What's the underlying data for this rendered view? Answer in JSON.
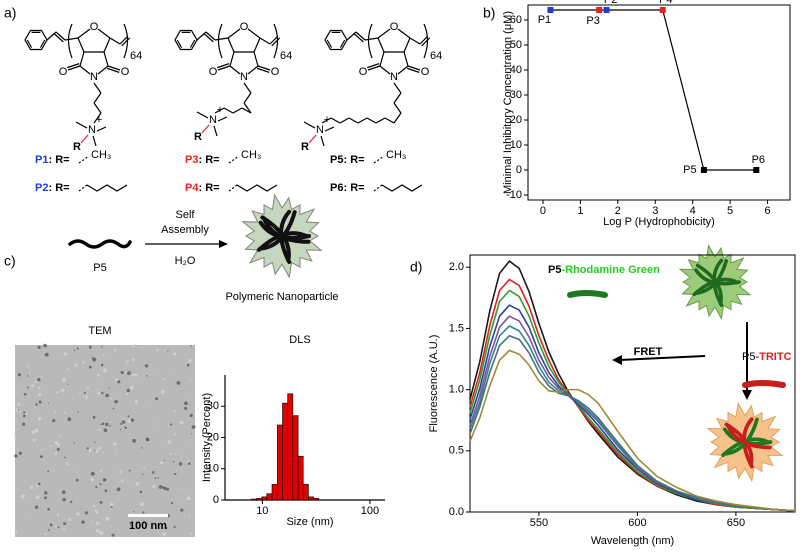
{
  "panels": {
    "a": "a)",
    "b": "b)",
    "c": "c)",
    "d": "d)"
  },
  "structures": [
    {
      "ring_o": "O",
      "carbonyl_left": "O",
      "carbonyl_right": "O",
      "imide_n": "N",
      "ammonium_n": "N",
      "charge": "+",
      "r": "R",
      "dp": "64"
    },
    {
      "ring_o": "O",
      "carbonyl_left": "O",
      "carbonyl_right": "O",
      "imide_n": "N",
      "ammonium_n": "N",
      "charge": "+",
      "r": "R",
      "dp": "64"
    },
    {
      "ring_o": "O",
      "carbonyl_left": "O",
      "carbonyl_right": "O",
      "imide_n": "N",
      "ammonium_n": "N",
      "charge": "+",
      "r": "R",
      "dp": "64"
    }
  ],
  "substituents": [
    {
      "name": "P1",
      "text": ": R=",
      "group": "CH₃",
      "color": "#1f3fcf"
    },
    {
      "name": "P2",
      "text": ": R=",
      "color": "#1f3fcf"
    },
    {
      "name": "P3",
      "text": ": R=",
      "group": "CH₃",
      "color": "#e8201f"
    },
    {
      "name": "P4",
      "text": ": R=",
      "color": "#e8201f"
    },
    {
      "name": "P5",
      "text": ": R=",
      "group": "CH₃",
      "color": "#000000"
    },
    {
      "name": "P6",
      "text": ": R=",
      "color": "#000000"
    }
  ],
  "scheme": {
    "monomer": "P5",
    "arrow_top": [
      "Self",
      "Assembly"
    ],
    "arrow_bottom": "H₂O",
    "product": "Polymeric Nanoparticle"
  },
  "tem": {
    "title": "TEM",
    "scale_bar": "100 nm"
  },
  "fret": {
    "donor": [
      "P5",
      "-Rhodamine Green"
    ],
    "arrow": "FRET",
    "acceptor": [
      "P5-",
      "TRITC"
    ]
  },
  "chart_data": [
    {
      "type": "line",
      "xlabel": "Log P (Hydrophobicity)",
      "ylabel": "Minimal Inhibitory Concentration (μM)",
      "x": [
        0.2,
        1.5,
        1.7,
        3.2,
        4.3,
        5.7
      ],
      "values": [
        64,
        64,
        64,
        64,
        0,
        0
      ],
      "point_labels": [
        "P1",
        "P3",
        "P2",
        "P4",
        "P5",
        "P6"
      ],
      "point_colors": [
        "#1f3fcf",
        "#e8201f",
        "#1f3fcf",
        "#e8201f",
        "#000000",
        "#000000"
      ],
      "color": "#000000",
      "xlim": [
        -0.4,
        6.6
      ],
      "xticks": [
        0,
        1,
        2,
        3,
        4,
        5,
        6
      ],
      "ylim": [
        -12,
        66
      ],
      "yticks": [
        -10,
        0,
        10,
        20,
        30,
        40,
        50,
        60
      ]
    },
    {
      "type": "histogram",
      "title": "DLS",
      "xlabel": "Size (nm)",
      "ylabel": "Intensity (Percent)",
      "bins": [
        7.9,
        8.8,
        9.9,
        11,
        12.3,
        13.8,
        15.4,
        17.2,
        19.2,
        21.5,
        24,
        26.8,
        30,
        33.5
      ],
      "values": [
        0.3,
        0.5,
        1,
        2,
        5,
        24,
        31,
        34,
        27,
        14,
        5,
        1,
        0.5
      ],
      "color": "#e00000",
      "xscale": "log",
      "xlim": [
        4.5,
        138
      ],
      "xticks": [
        10,
        100
      ],
      "ylim": [
        0,
        40
      ],
      "yticks": [
        0,
        10,
        20,
        30
      ]
    },
    {
      "type": "line",
      "xlabel": "Wavelength (nm)",
      "ylabel": "Fluorescence (A.U.)",
      "x": [
        515,
        520,
        525,
        530,
        535,
        540,
        545,
        550,
        555,
        560,
        565,
        570,
        575,
        580,
        590,
        600,
        610,
        620,
        630,
        640,
        650,
        660,
        670,
        680
      ],
      "series": [
        {
          "color": "#1a1a1a",
          "values": [
            0.92,
            1.23,
            1.64,
            1.95,
            2.05,
            1.99,
            1.8,
            1.54,
            1.31,
            1.13,
            0.98,
            0.86,
            0.74,
            0.64,
            0.45,
            0.31,
            0.21,
            0.14,
            0.09,
            0.06,
            0.04,
            0.03,
            0.02,
            0.01
          ]
        },
        {
          "color": "#e02020",
          "values": [
            0.86,
            1.14,
            1.52,
            1.81,
            1.9,
            1.85,
            1.68,
            1.44,
            1.24,
            1.08,
            0.97,
            0.86,
            0.75,
            0.66,
            0.47,
            0.32,
            0.21,
            0.15,
            0.1,
            0.06,
            0.04,
            0.03,
            0.02,
            0.01
          ]
        },
        {
          "color": "#2ca02c",
          "values": [
            0.81,
            1.08,
            1.44,
            1.72,
            1.81,
            1.76,
            1.6,
            1.38,
            1.19,
            1.06,
            0.96,
            0.87,
            0.77,
            0.68,
            0.49,
            0.33,
            0.22,
            0.15,
            0.1,
            0.07,
            0.04,
            0.03,
            0.02,
            0.01
          ]
        },
        {
          "color": "#2f3f9f",
          "values": [
            0.76,
            1.01,
            1.35,
            1.6,
            1.69,
            1.65,
            1.51,
            1.3,
            1.14,
            1.03,
            0.95,
            0.88,
            0.8,
            0.71,
            0.51,
            0.35,
            0.23,
            0.16,
            0.1,
            0.07,
            0.05,
            0.03,
            0.02,
            0.01
          ]
        },
        {
          "color": "#8a4f9e",
          "values": [
            0.71,
            0.95,
            1.27,
            1.51,
            1.6,
            1.56,
            1.43,
            1.24,
            1.1,
            1.01,
            0.95,
            0.9,
            0.82,
            0.74,
            0.54,
            0.36,
            0.24,
            0.17,
            0.11,
            0.07,
            0.05,
            0.03,
            0.02,
            0.01
          ]
        },
        {
          "color": "#2a8a8a",
          "values": [
            0.68,
            0.9,
            1.21,
            1.44,
            1.52,
            1.48,
            1.36,
            1.19,
            1.06,
            0.99,
            0.95,
            0.9,
            0.83,
            0.75,
            0.55,
            0.37,
            0.25,
            0.17,
            0.11,
            0.07,
            0.05,
            0.03,
            0.02,
            0.01
          ]
        },
        {
          "color": "#4a6e7e",
          "values": [
            0.64,
            0.86,
            1.14,
            1.36,
            1.44,
            1.41,
            1.3,
            1.14,
            1.03,
            0.97,
            0.95,
            0.91,
            0.85,
            0.77,
            0.57,
            0.38,
            0.25,
            0.17,
            0.12,
            0.08,
            0.05,
            0.03,
            0.02,
            0.01
          ]
        },
        {
          "color": "#a08a3a",
          "values": [
            0.58,
            0.77,
            1.03,
            1.24,
            1.32,
            1.29,
            1.2,
            1.07,
            0.99,
            0.98,
            1,
            1,
            0.96,
            0.89,
            0.66,
            0.44,
            0.29,
            0.2,
            0.13,
            0.09,
            0.06,
            0.04,
            0.02,
            0.01
          ]
        }
      ],
      "xlim": [
        515,
        680
      ],
      "xticks": [
        550,
        600,
        650
      ],
      "ylim": [
        0,
        2.1
      ],
      "yticks": [
        {
          "value": 0,
          "label": "0.0"
        },
        0.5,
        {
          "value": 1,
          "label": "1.0"
        },
        1.5,
        {
          "value": 2,
          "label": "2.0"
        }
      ]
    }
  ]
}
